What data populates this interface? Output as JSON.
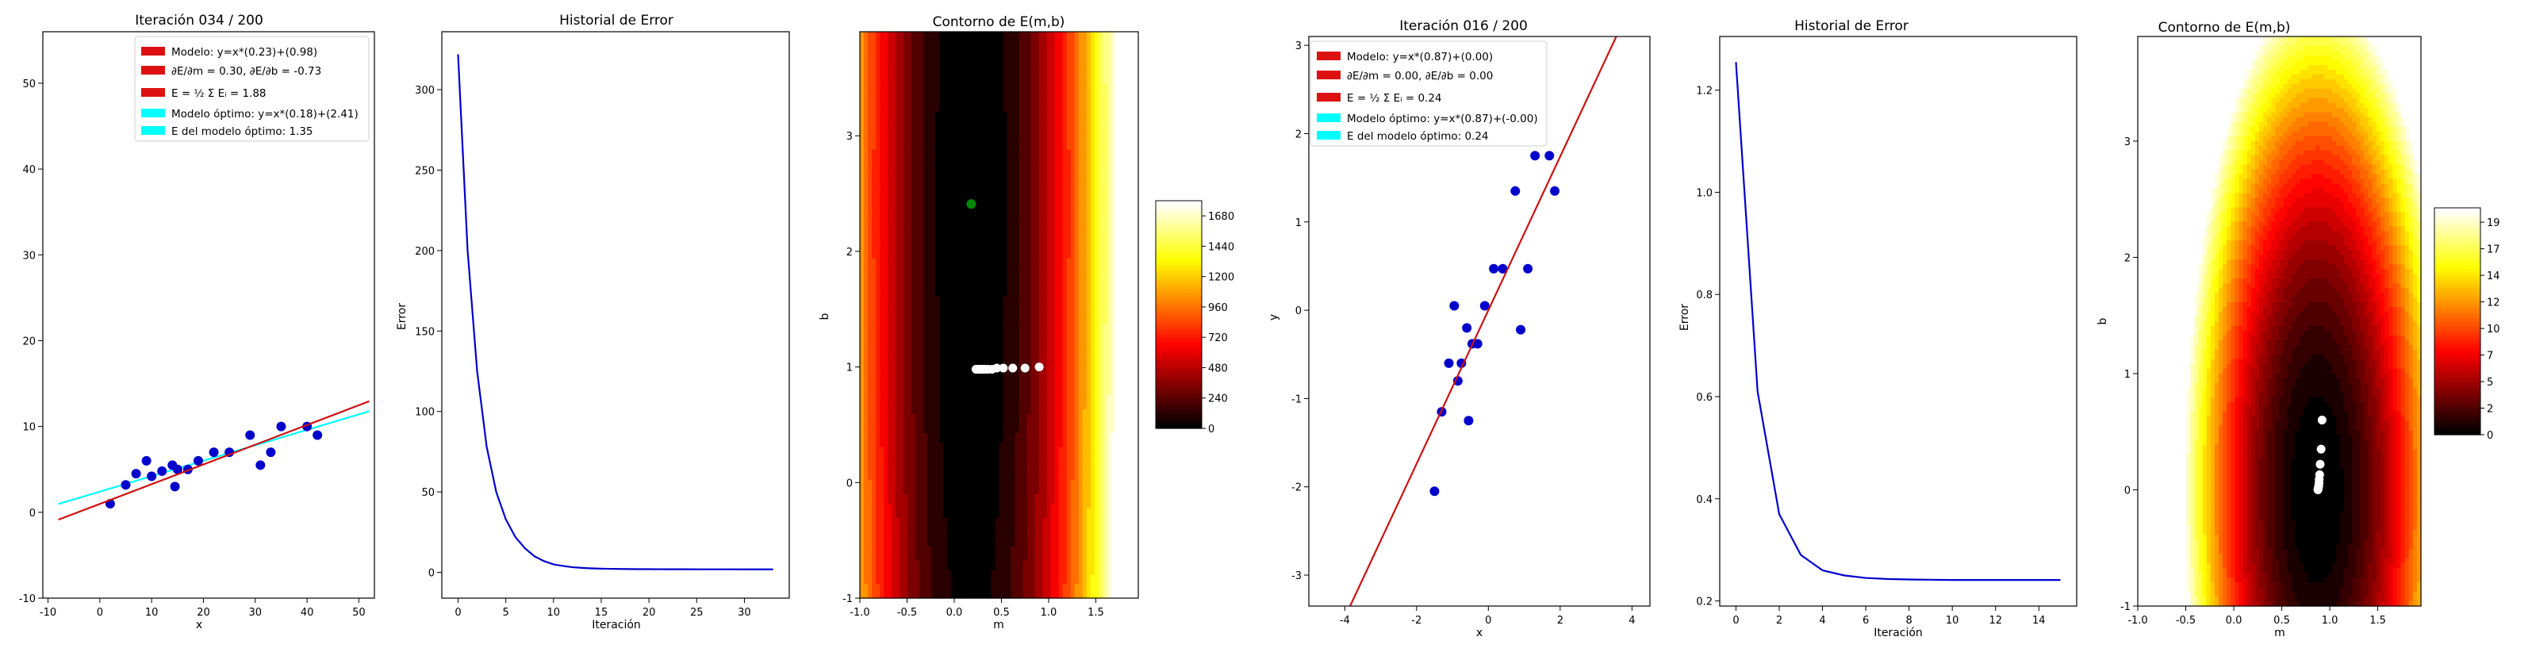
{
  "colors": {
    "model": "#cc1111",
    "optimal": "#00ffff",
    "points": "#0000cc",
    "history": "#0000cc",
    "path": "#ffffff",
    "start_point": "#008800"
  },
  "left": {
    "scatter": {
      "title": "Iteración 034 / 200",
      "xlabel": "x",
      "ylabel": "",
      "xlim": [
        -11,
        53
      ],
      "ylim": [
        -10,
        56
      ],
      "xticks": [
        -10,
        0,
        10,
        20,
        30,
        40,
        50
      ],
      "yticks": [
        -10,
        0,
        10,
        20,
        30,
        40,
        50
      ],
      "legend": [
        {
          "color": "#dd1111",
          "label": "Modelo: y=x*(0.23)+(0.98)"
        },
        {
          "color": "#dd1111",
          "label": "∂E/∂m = 0.30, ∂E/∂b = -0.73"
        },
        {
          "color": "#dd1111",
          "label": "E = ½ Σ Eᵢ = 1.88"
        },
        {
          "color": "#00ffff",
          "label": "Modelo óptimo: y=x*(0.18)+(2.41)"
        },
        {
          "color": "#00ffff",
          "label": "E del modelo óptimo: 1.35"
        }
      ],
      "points": [
        [
          2,
          1
        ],
        [
          5,
          3.2
        ],
        [
          7,
          4.5
        ],
        [
          9,
          6
        ],
        [
          10,
          4.2
        ],
        [
          12,
          4.8
        ],
        [
          14,
          5.5
        ],
        [
          14.5,
          3
        ],
        [
          15,
          5
        ],
        [
          17,
          5
        ],
        [
          19,
          6
        ],
        [
          22,
          7
        ],
        [
          25,
          7
        ],
        [
          29,
          9
        ],
        [
          31,
          5.5
        ],
        [
          33,
          7
        ],
        [
          35,
          10
        ],
        [
          40,
          10
        ],
        [
          42,
          9
        ]
      ],
      "model_line": {
        "m": 0.23,
        "b": 0.98,
        "x_range": [
          -8,
          52
        ]
      },
      "optimal_line": {
        "m": 0.18,
        "b": 2.41,
        "x_range": [
          -8,
          52
        ]
      }
    },
    "history": {
      "title": "Historial de Error",
      "xlabel": "Iteración",
      "ylabel": "Error",
      "xlim": [
        -1.7,
        34.7
      ],
      "ylim": [
        -16,
        336
      ],
      "xticks": [
        0,
        5,
        10,
        15,
        20,
        25,
        30
      ],
      "yticks": [
        0,
        50,
        100,
        150,
        200,
        250,
        300
      ],
      "values": [
        322,
        200,
        125,
        78,
        50,
        33,
        22,
        15,
        10,
        7,
        5,
        4,
        3.2,
        2.8,
        2.5,
        2.3,
        2.2,
        2.1,
        2.05,
        2.0,
        1.98,
        1.96,
        1.94,
        1.93,
        1.92,
        1.91,
        1.9,
        1.9,
        1.89,
        1.89,
        1.88,
        1.88,
        1.88,
        1.88
      ]
    },
    "contour": {
      "title": "Contorno de E(m,b)",
      "xlabel": "m",
      "ylabel": "b",
      "xlim": [
        -1.0,
        1.95
      ],
      "ylim": [
        -1.0,
        3.9
      ],
      "xticks": [
        -1.0,
        -0.5,
        0.0,
        0.5,
        1.0,
        1.5
      ],
      "yticks": [
        -1,
        0,
        1,
        2,
        3
      ],
      "colorbar_ticks": [
        0,
        240,
        480,
        720,
        960,
        1200,
        1440,
        1680
      ],
      "colorbar_max": 1800,
      "start_point": [
        0.18,
        2.41
      ],
      "path": [
        [
          0.9,
          1.0
        ],
        [
          0.75,
          0.99
        ],
        [
          0.62,
          0.99
        ],
        [
          0.52,
          0.99
        ],
        [
          0.45,
          0.99
        ],
        [
          0.4,
          0.98
        ],
        [
          0.36,
          0.98
        ],
        [
          0.33,
          0.98
        ],
        [
          0.31,
          0.98
        ],
        [
          0.29,
          0.98
        ],
        [
          0.27,
          0.98
        ],
        [
          0.26,
          0.98
        ],
        [
          0.25,
          0.98
        ],
        [
          0.24,
          0.98
        ],
        [
          0.23,
          0.98
        ]
      ]
    }
  },
  "right": {
    "scatter": {
      "title": "Iteración 016 / 200",
      "xlabel": "x",
      "ylabel": "y",
      "xlim": [
        -5,
        4.5
      ],
      "ylim": [
        -3.35,
        3.1
      ],
      "xticks": [
        -4,
        -2,
        0,
        2,
        4
      ],
      "yticks": [
        -3,
        -2,
        -1,
        0,
        1,
        2,
        3
      ],
      "legend": [
        {
          "color": "#dd1111",
          "label": "Modelo: y=x*(0.87)+(0.00)"
        },
        {
          "color": "#dd1111",
          "label": "∂E/∂m = 0.00, ∂E/∂b = 0.00"
        },
        {
          "color": "#dd1111",
          "label": "E = ½ Σ Eᵢ = 0.24"
        },
        {
          "color": "#00ffff",
          "label": "Modelo óptimo: y=x*(0.87)+(-0.00)"
        },
        {
          "color": "#00ffff",
          "label": "E del modelo óptimo: 0.24"
        }
      ],
      "points": [
        [
          -1.5,
          -2.05
        ],
        [
          -1.3,
          -1.15
        ],
        [
          -1.1,
          -0.6
        ],
        [
          -0.95,
          0.05
        ],
        [
          -0.85,
          -0.8
        ],
        [
          -0.75,
          -0.6
        ],
        [
          -0.6,
          -0.2
        ],
        [
          -0.55,
          -1.25
        ],
        [
          -0.45,
          -0.38
        ],
        [
          -0.3,
          -0.38
        ],
        [
          -0.1,
          0.05
        ],
        [
          0.15,
          0.47
        ],
        [
          0.4,
          0.47
        ],
        [
          0.75,
          1.35
        ],
        [
          0.9,
          -0.22
        ],
        [
          1.1,
          0.47
        ],
        [
          1.3,
          1.75
        ],
        [
          1.7,
          1.75
        ],
        [
          1.85,
          1.35
        ]
      ],
      "model_line": {
        "m": 0.87,
        "b": 0.0,
        "x_range": [
          -3.9,
          3.6
        ]
      }
    },
    "history": {
      "title": "Historial de Error",
      "xlabel": "Iteración",
      "ylabel": "Error",
      "xlim": [
        -0.75,
        15.75
      ],
      "ylim": [
        0.19,
        1.305
      ],
      "xticks": [
        0,
        2,
        4,
        6,
        8,
        10,
        12,
        14
      ],
      "yticks": [
        0.2,
        0.4,
        0.6,
        0.8,
        1.0,
        1.2
      ],
      "values": [
        1.255,
        0.61,
        0.37,
        0.29,
        0.26,
        0.25,
        0.245,
        0.243,
        0.242,
        0.2415,
        0.241,
        0.241,
        0.241,
        0.241,
        0.241,
        0.241
      ]
    },
    "contour": {
      "title": "Contorno de E(m,b)",
      "xlabel": "m",
      "ylabel": "b",
      "xlim": [
        -1.0,
        1.95
      ],
      "ylim": [
        -1.0,
        3.9
      ],
      "xticks": [
        -1.0,
        -0.5,
        0.0,
        0.5,
        1.0,
        1.5
      ],
      "yticks": [
        -1,
        0,
        1,
        2,
        3
      ],
      "colorbar_ticks": [
        0.0,
        2.4,
        4.8,
        7.2,
        9.6,
        12.0,
        14.4,
        16.8,
        19.2
      ],
      "colorbar_max": 20.5,
      "path": [
        [
          0.92,
          0.6
        ],
        [
          0.91,
          0.35
        ],
        [
          0.9,
          0.22
        ],
        [
          0.895,
          0.13
        ],
        [
          0.89,
          0.09
        ],
        [
          0.888,
          0.06
        ],
        [
          0.886,
          0.04
        ],
        [
          0.884,
          0.03
        ],
        [
          0.882,
          0.02
        ],
        [
          0.88,
          0.01
        ],
        [
          0.878,
          0.005
        ],
        [
          0.877,
          0.0
        ]
      ]
    }
  },
  "chart_data": [
    {
      "type": "scatter",
      "title": "Iteración 034 / 200",
      "xlabel": "x",
      "ylabel": "",
      "xlim": [
        -11,
        53
      ],
      "ylim": [
        -10,
        56
      ],
      "series": [
        {
          "name": "Modelo: y=x*(0.23)+(0.98)",
          "type": "line",
          "x": [
            -8,
            52
          ],
          "y": [
            -0.86,
            12.94
          ]
        },
        {
          "name": "Modelo óptimo: y=x*(0.18)+(2.41)",
          "type": "line",
          "x": [
            -8,
            52
          ],
          "y": [
            0.97,
            11.77
          ]
        },
        {
          "type": "scatter",
          "x": [
            2,
            5,
            7,
            9,
            10,
            12,
            14,
            14.5,
            15,
            17,
            19,
            22,
            25,
            29,
            31,
            33,
            35,
            40,
            42
          ],
          "y": [
            1,
            3.2,
            4.5,
            6,
            4.2,
            4.8,
            5.5,
            3,
            5,
            5,
            6,
            7,
            7,
            9,
            5.5,
            7,
            10,
            10,
            9
          ]
        }
      ]
    },
    {
      "type": "line",
      "title": "Historial de Error",
      "xlabel": "Iteración",
      "ylabel": "Error",
      "x": [
        0,
        1,
        2,
        3,
        4,
        5,
        6,
        7,
        8,
        9,
        10,
        11,
        12,
        13,
        14,
        15,
        16,
        17,
        18,
        19,
        20,
        21,
        22,
        23,
        24,
        25,
        26,
        27,
        28,
        29,
        30,
        31,
        32,
        33
      ],
      "values": [
        322,
        200,
        125,
        78,
        50,
        33,
        22,
        15,
        10,
        7,
        5,
        4,
        3.2,
        2.8,
        2.5,
        2.3,
        2.2,
        2.1,
        2.05,
        2.0,
        1.98,
        1.96,
        1.94,
        1.93,
        1.92,
        1.91,
        1.9,
        1.9,
        1.89,
        1.89,
        1.88,
        1.88,
        1.88,
        1.88
      ]
    },
    {
      "type": "heatmap",
      "title": "Contorno de E(m,b)",
      "xlabel": "m",
      "ylabel": "b",
      "xlim": [
        -1.0,
        1.95
      ],
      "ylim": [
        -1.0,
        3.9
      ],
      "colorbar_ticks": [
        0,
        240,
        480,
        720,
        960,
        1200,
        1440,
        1680
      ]
    },
    {
      "type": "scatter",
      "title": "Iteración 016 / 200",
      "xlabel": "x",
      "ylabel": "y",
      "series": [
        {
          "name": "Modelo: y=x*(0.87)+(0.00)",
          "type": "line",
          "x": [
            -3.9,
            3.6
          ],
          "y": [
            -3.39,
            3.13
          ]
        },
        {
          "type": "scatter",
          "x": [
            -1.5,
            -1.3,
            -1.1,
            -0.95,
            -0.85,
            -0.75,
            -0.6,
            -0.55,
            -0.45,
            -0.3,
            -0.1,
            0.15,
            0.4,
            0.75,
            0.9,
            1.1,
            1.3,
            1.7,
            1.85
          ],
          "y": [
            -2.05,
            -1.15,
            -0.6,
            0.05,
            -0.8,
            -0.6,
            -0.2,
            -1.25,
            -0.38,
            -0.38,
            0.05,
            0.47,
            0.47,
            1.35,
            -0.22,
            0.47,
            1.75,
            1.75,
            1.35
          ]
        }
      ]
    },
    {
      "type": "line",
      "title": "Historial de Error",
      "xlabel": "Iteración",
      "ylabel": "Error",
      "x": [
        0,
        1,
        2,
        3,
        4,
        5,
        6,
        7,
        8,
        9,
        10,
        11,
        12,
        13,
        14,
        15
      ],
      "values": [
        1.255,
        0.61,
        0.37,
        0.29,
        0.26,
        0.25,
        0.245,
        0.243,
        0.242,
        0.2415,
        0.241,
        0.241,
        0.241,
        0.241,
        0.241,
        0.241
      ]
    },
    {
      "type": "heatmap",
      "title": "Contorno de E(m,b)",
      "xlabel": "m",
      "ylabel": "b",
      "xlim": [
        -1.0,
        1.95
      ],
      "ylim": [
        -1.0,
        3.9
      ],
      "colorbar_ticks": [
        0.0,
        2.4,
        4.8,
        7.2,
        9.6,
        12.0,
        14.4,
        16.8,
        19.2
      ]
    }
  ]
}
